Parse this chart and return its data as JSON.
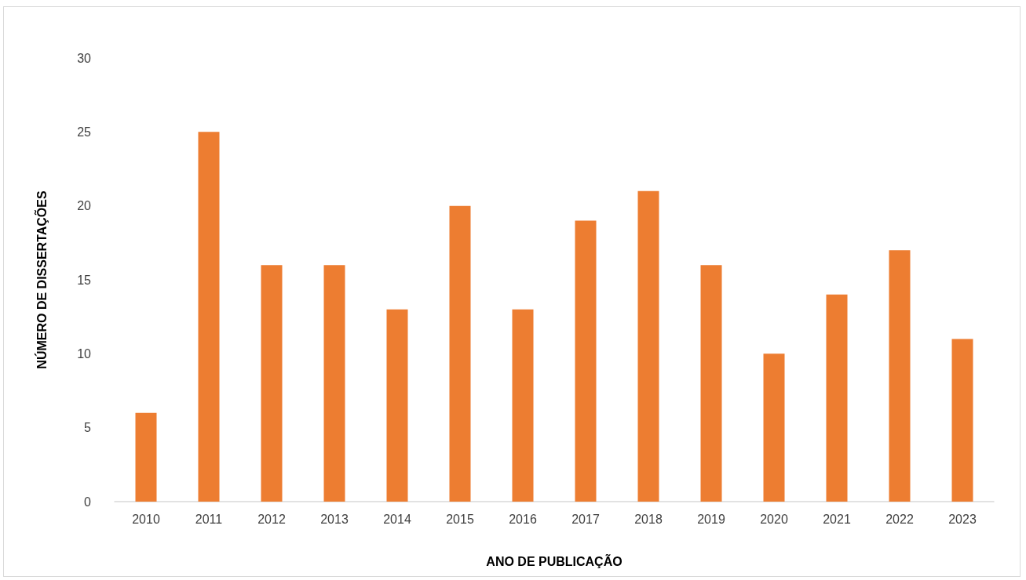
{
  "chart_data": {
    "type": "bar",
    "xlabel": "ANO DE PUBLICAÇÃO",
    "ylabel": "NÚMERO DE DISSERTAÇÕES",
    "categories": [
      "2010",
      "2011",
      "2012",
      "2013",
      "2014",
      "2015",
      "2016",
      "2017",
      "2018",
      "2019",
      "2020",
      "2021",
      "2022",
      "2023"
    ],
    "values": [
      6,
      25,
      16,
      16,
      13,
      20,
      13,
      19,
      21,
      16,
      10,
      14,
      17,
      11
    ],
    "color": "#ed7d31",
    "ylim": [
      0,
      30
    ],
    "yticks": [
      0,
      5,
      10,
      15,
      20,
      25,
      30
    ],
    "grid": false
  }
}
